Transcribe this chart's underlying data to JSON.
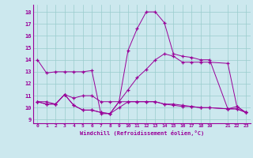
{
  "xlabel": "Windchill (Refroidissement éolien,°C)",
  "bg_color": "#cce8ee",
  "line_color": "#990099",
  "grid_color": "#99cccc",
  "x_ticks": [
    0,
    1,
    2,
    3,
    4,
    5,
    6,
    7,
    8,
    9,
    10,
    11,
    12,
    13,
    14,
    15,
    16,
    17,
    18,
    19,
    21,
    22,
    23
  ],
  "y_ticks": [
    9,
    10,
    11,
    12,
    13,
    14,
    15,
    16,
    17,
    18
  ],
  "xlim": [
    -0.5,
    23.5
  ],
  "ylim": [
    8.7,
    18.6
  ],
  "series": [
    {
      "x": [
        0,
        1,
        2,
        3,
        4,
        5,
        6,
        7,
        8,
        9,
        10,
        11,
        12,
        13,
        14,
        15,
        16,
        17,
        18,
        19,
        21,
        22,
        23
      ],
      "y": [
        14.0,
        12.9,
        13.0,
        13.0,
        13.0,
        13.0,
        13.1,
        9.5,
        9.5,
        10.5,
        14.8,
        16.6,
        18.0,
        18.0,
        17.1,
        14.5,
        14.3,
        14.2,
        14.0,
        14.0,
        9.9,
        10.1,
        9.6
      ]
    },
    {
      "x": [
        0,
        1,
        2,
        3,
        4,
        5,
        6,
        7,
        8,
        9,
        10,
        11,
        12,
        13,
        14,
        15,
        16,
        17,
        18,
        19,
        21,
        22,
        23
      ],
      "y": [
        10.5,
        10.3,
        10.3,
        11.1,
        10.8,
        11.0,
        11.0,
        10.5,
        10.5,
        10.5,
        10.5,
        10.5,
        10.5,
        10.5,
        10.3,
        10.3,
        10.2,
        10.1,
        10.0,
        10.0,
        9.9,
        9.9,
        9.6
      ]
    },
    {
      "x": [
        0,
        1,
        2,
        3,
        4,
        5,
        6,
        7,
        8,
        9,
        10,
        11,
        12,
        13,
        14,
        15,
        16,
        17,
        18,
        19,
        21,
        22,
        23
      ],
      "y": [
        10.5,
        10.3,
        10.3,
        11.1,
        10.2,
        9.8,
        9.8,
        9.6,
        9.5,
        10.0,
        10.5,
        10.5,
        10.5,
        10.5,
        10.3,
        10.2,
        10.1,
        10.1,
        10.0,
        10.0,
        9.9,
        9.9,
        9.6
      ]
    },
    {
      "x": [
        0,
        1,
        2,
        3,
        4,
        5,
        6,
        7,
        8,
        9,
        10,
        11,
        12,
        13,
        14,
        15,
        16,
        17,
        18,
        19,
        21,
        22,
        23
      ],
      "y": [
        10.5,
        10.5,
        10.3,
        11.1,
        10.2,
        9.8,
        9.8,
        9.6,
        9.5,
        10.5,
        11.5,
        12.5,
        13.2,
        14.0,
        14.5,
        14.3,
        13.8,
        13.8,
        13.8,
        13.8,
        13.7,
        10.1,
        9.6
      ]
    }
  ]
}
